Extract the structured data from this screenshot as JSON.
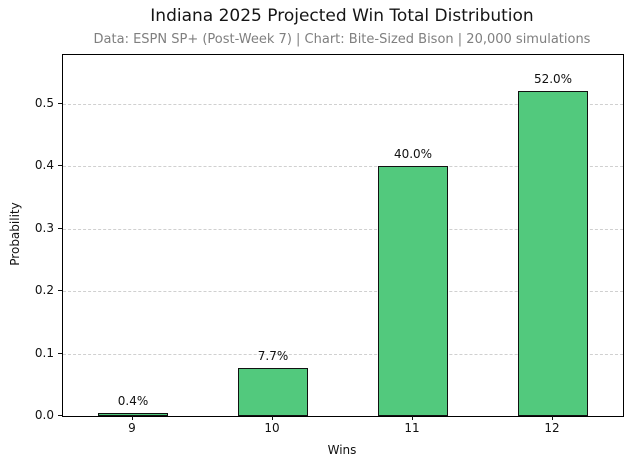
{
  "chart_data": {
    "type": "bar",
    "title": "Indiana 2025 Projected Win Total Distribution",
    "subtitle": "Data: ESPN SP+ (Post-Week 7) | Chart: Bite-Sized Bison | 20,000 simulations",
    "xlabel": "Wins",
    "ylabel": "Probability",
    "categories": [
      "9",
      "10",
      "11",
      "12"
    ],
    "values": [
      0.004,
      0.077,
      0.4,
      0.52
    ],
    "bar_labels": [
      "0.4%",
      "7.7%",
      "40.0%",
      "52.0%"
    ],
    "yticks": [
      0.0,
      0.1,
      0.2,
      0.3,
      0.4,
      0.5
    ],
    "ytick_labels": [
      "0.0",
      "0.1",
      "0.2",
      "0.3",
      "0.4",
      "0.5"
    ],
    "ylim": [
      0,
      0.578
    ],
    "grid": "horizontal-dashed",
    "legend_position": "none",
    "bar_width_fraction": 0.5,
    "colors": {
      "bar_fill": "#52c97d",
      "bar_edge": "#111111",
      "grid": "#d0d0d0",
      "subtitle_text": "#7f7f7f",
      "text": "#111111",
      "background": "#ffffff"
    }
  }
}
